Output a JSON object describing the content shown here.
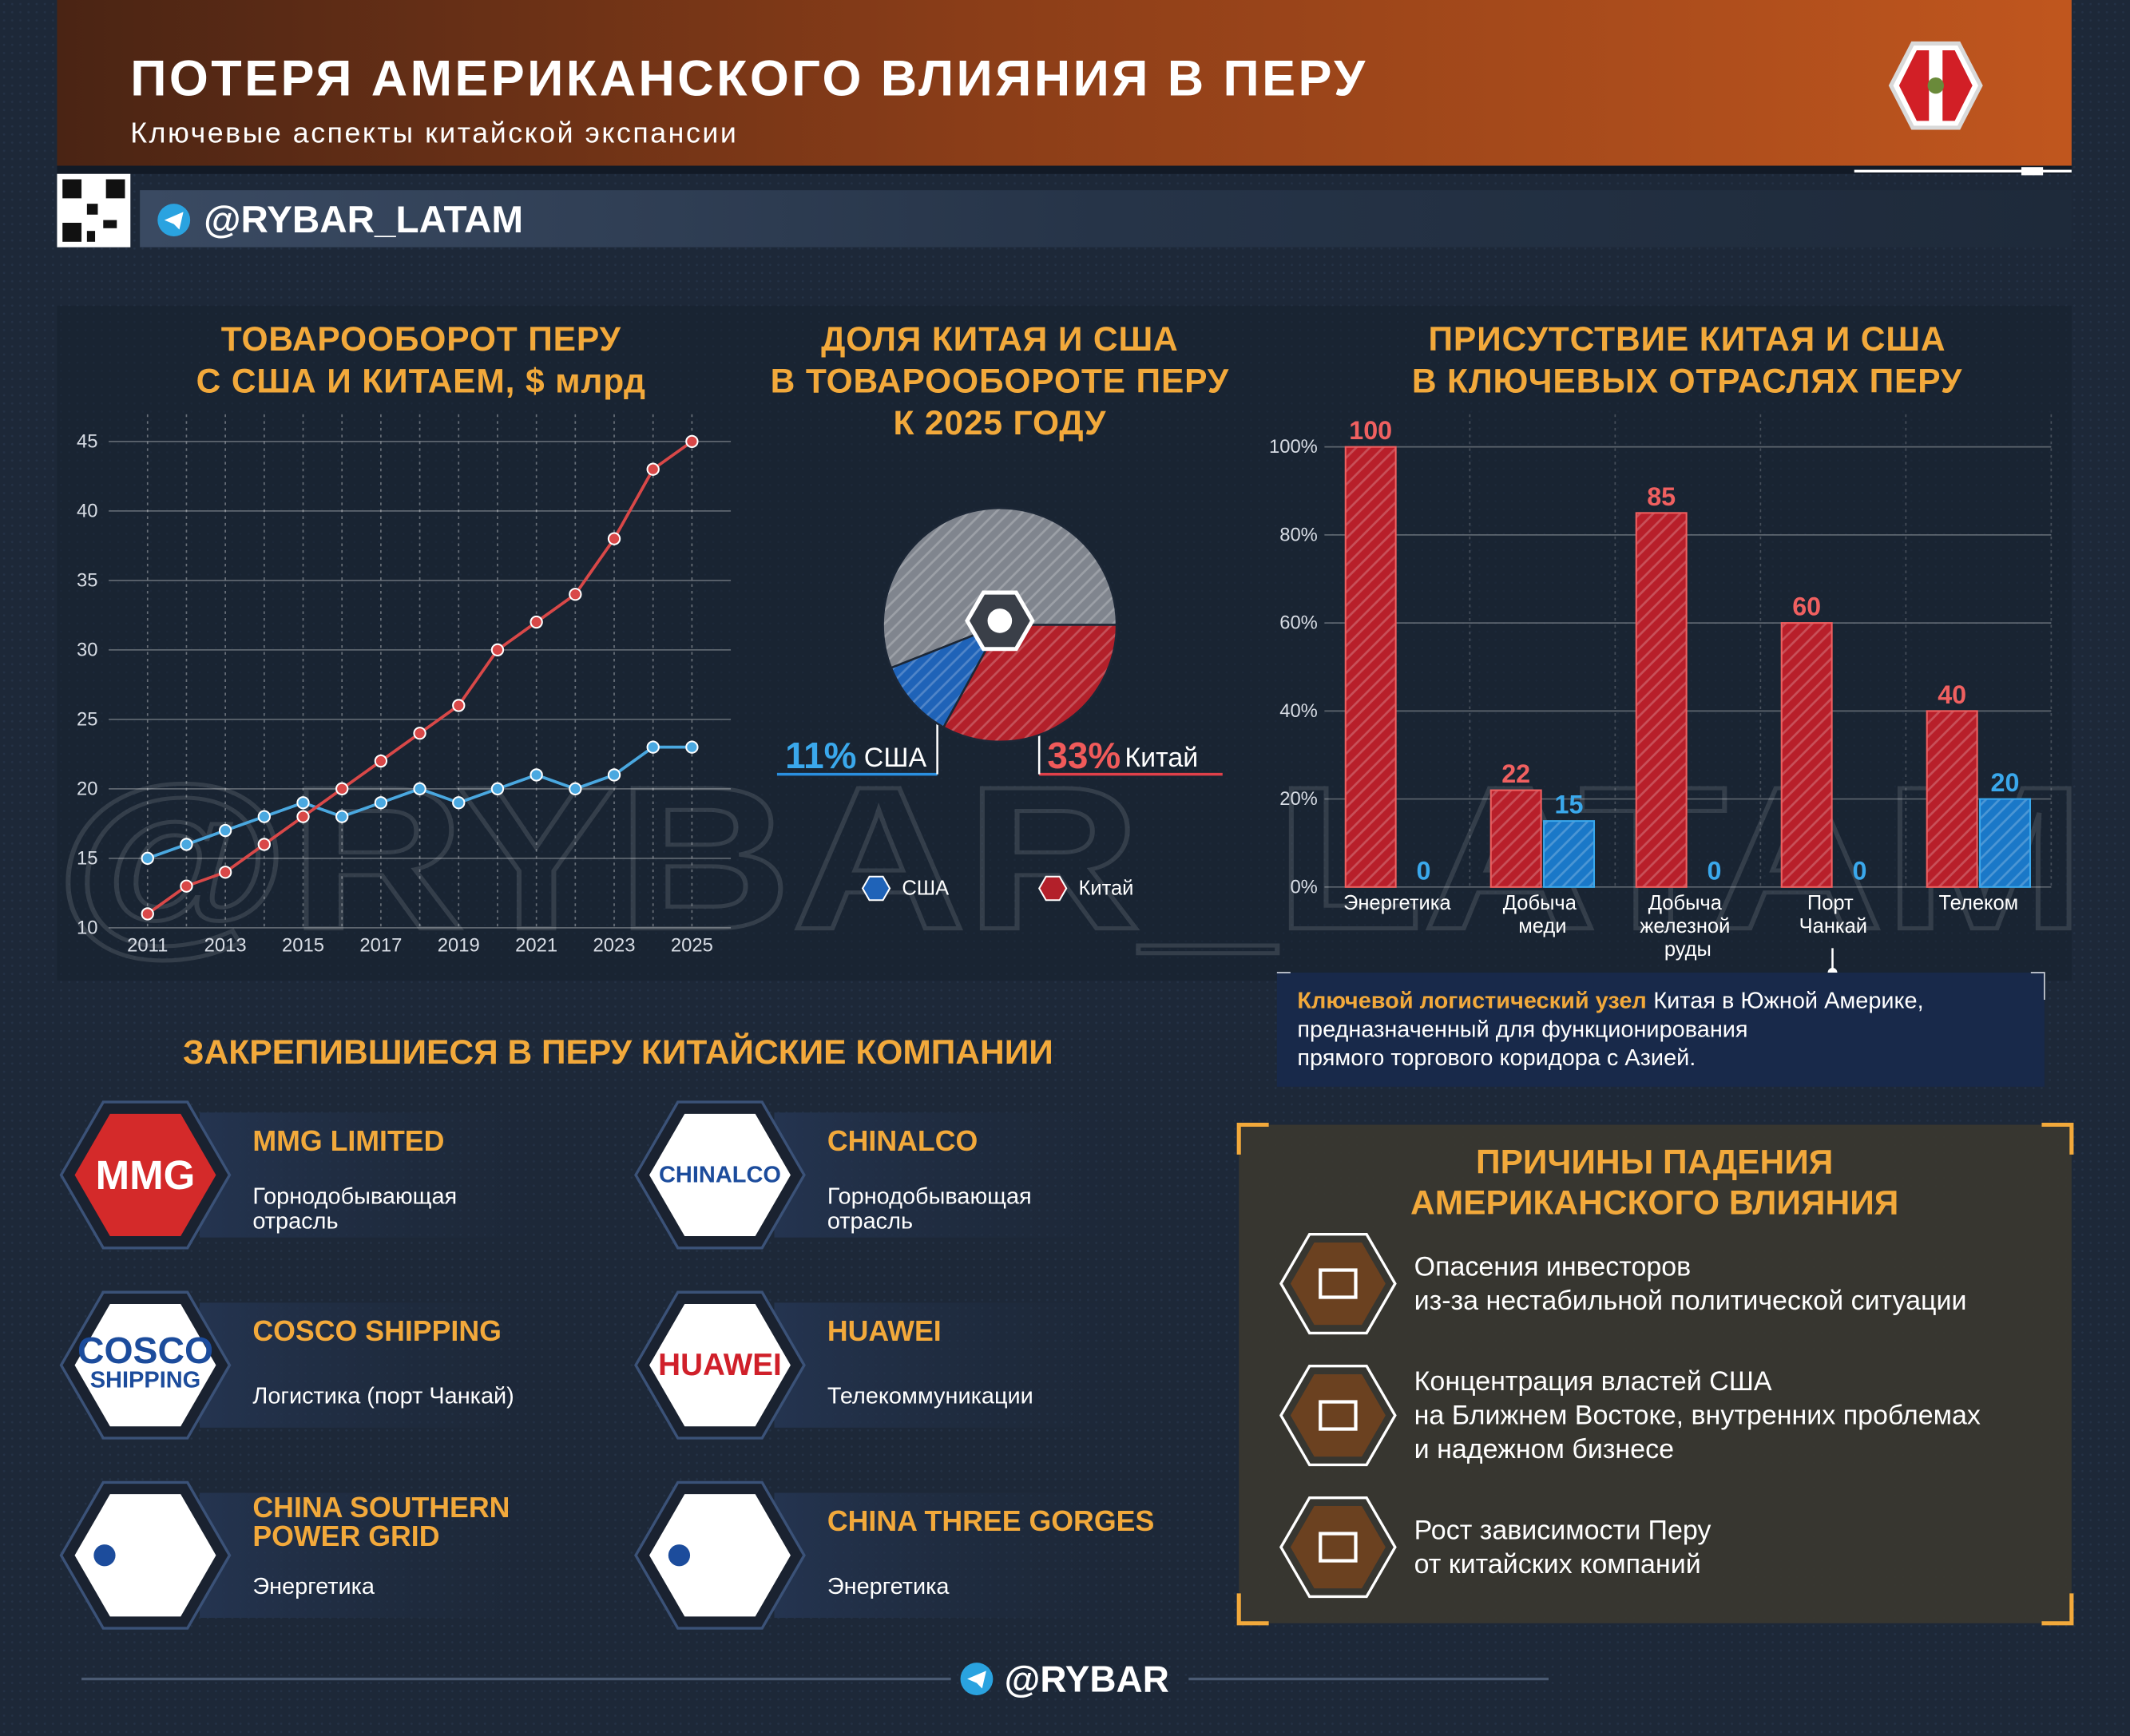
{
  "header": {
    "title": "ПОТЕРЯ АМЕРИКАНСКОГО ВЛИЯНИЯ В ПЕРУ",
    "subtitle": "Ключевые аспекты китайской экспансии",
    "handle": "@RYBAR_LATAM"
  },
  "watermark": "@RYBAR_LATAM",
  "chart_data": [
    {
      "type": "line",
      "title": [
        "ТОВАРООБОРОТ ПЕРУ",
        "С США И КИТАЕМ, $ млрд"
      ],
      "x": [
        2011,
        2012,
        2013,
        2014,
        2015,
        2016,
        2017,
        2018,
        2019,
        2020,
        2021,
        2022,
        2023,
        2024,
        2025
      ],
      "series": [
        {
          "color": "#4aa8e0",
          "values": [
            15,
            16,
            17,
            18,
            19,
            18,
            19,
            20,
            19,
            20,
            21,
            20,
            21,
            23,
            23
          ]
        },
        {
          "color": "#d94848",
          "values": [
            11,
            13,
            14,
            16,
            18,
            20,
            22,
            24,
            26,
            30,
            32,
            34,
            38,
            43,
            45
          ]
        }
      ],
      "xlim": [
        2010,
        2026
      ],
      "xticks": [
        2011,
        2013,
        2015,
        2017,
        2019,
        2021,
        2023,
        2025
      ],
      "ylim": [
        10,
        45
      ],
      "yticks": [
        10,
        15,
        20,
        25,
        30,
        35,
        40,
        45
      ],
      "grid": true
    },
    {
      "type": "pie",
      "title": [
        "ДОЛЯ КИТАЯ И США",
        "В ТОВАРООБОРОТЕ ПЕРУ",
        "К 2025 ГОДУ"
      ],
      "categories": [
        null,
        "США",
        "Китай"
      ],
      "values": [
        56,
        11,
        33
      ],
      "value_labels": [
        null,
        "11%",
        "33%"
      ],
      "colors": [
        "#80858e",
        "#1f63b8",
        "#b3202a"
      ],
      "label_colors": [
        null,
        "#3aa8ec",
        "#f05a5a"
      ]
    },
    {
      "type": "bar",
      "title": [
        "ПРИСУТСТВИЕ КИТАЯ И США",
        "В КЛЮЧЕВЫХ ОТРАСЛЯХ ПЕРУ"
      ],
      "categories": [
        "Энергетика",
        "Добыча меди",
        "Добыча железной руды",
        "Порт Чанкай",
        "Телеком"
      ],
      "series": [
        {
          "color": "#b81f2a",
          "label_color": "#f06060",
          "values": [
            100,
            22,
            85,
            60,
            40
          ]
        },
        {
          "color": "#1a78c8",
          "label_color": "#3aa8ec",
          "values": [
            0,
            15,
            0,
            0,
            20
          ]
        }
      ],
      "ylim": [
        0,
        100
      ],
      "yticks": [
        {
          "value": 0,
          "label": "0%"
        },
        {
          "value": 20,
          "label": "20%"
        },
        {
          "value": 40,
          "label": "40%"
        },
        {
          "value": 60,
          "label": "60%"
        },
        {
          "value": 80,
          "label": "80%"
        },
        {
          "value": 100,
          "label": "100%"
        }
      ],
      "grid": true
    }
  ],
  "note": {
    "highlight": "Ключевой логистический узел",
    "lines": [
      "Китая в Южной Америке,",
      "предназначенный для функционирования",
      "прямого торгового коридора с Азией."
    ]
  },
  "companies": {
    "title": "ЗАКРЕПИВШИЕСЯ В ПЕРУ КИТАЙСКИЕ КОМПАНИИ",
    "items": [
      {
        "name": [
          "MMG LIMITED"
        ],
        "sector": [
          "Горнодобывающая",
          "отрасль"
        ],
        "logo": [
          "MMG"
        ],
        "logo_bg": "#d42a2a",
        "logo_color": "#ffffff"
      },
      {
        "name": [
          "CHINALCO"
        ],
        "sector": [
          "Горнодобывающая",
          "отрасль"
        ],
        "logo": [
          "CHINALCO"
        ],
        "logo_bg": "#ffffff",
        "logo_color": "#1c4c9c"
      },
      {
        "name": [
          "COSCO SHIPPING"
        ],
        "sector": [
          "Логистика (порт Чанкай)"
        ],
        "logo": [
          "COSCO",
          "SHIPPING"
        ],
        "logo_bg": "#ffffff",
        "logo_color": "#1c4c9c"
      },
      {
        "name": [
          "HUAWEI"
        ],
        "sector": [
          "Телекоммуникации"
        ],
        "logo": [
          "HUAWEI"
        ],
        "logo_bg": "#ffffff",
        "logo_color": "#d0202a"
      },
      {
        "name": [
          "CHINA SOUTHERN",
          "POWER GRID"
        ],
        "sector": [
          "Энергетика"
        ],
        "logo": [],
        "logo_bg": "#ffffff",
        "logo_color": "#1c4c9c"
      },
      {
        "name": [
          "CHINA THREE GORGES"
        ],
        "sector": [
          "Энергетика"
        ],
        "logo": [],
        "logo_bg": "#ffffff",
        "logo_color": "#1c4c9c"
      }
    ]
  },
  "reasons": {
    "title": [
      "ПРИЧИНЫ ПАДЕНИЯ",
      "АМЕРИКАНСКОГО ВЛИЯНИЯ"
    ],
    "items": [
      [
        "Опасения инвесторов",
        "из-за нестабильной политической ситуации"
      ],
      [
        "Концентрация властей США",
        "на Ближнем Востоке, внутренних проблемах",
        "и надежном бизнесе"
      ],
      [
        "Рост зависимости Перу",
        "от китайских компаний"
      ]
    ]
  },
  "footer": "@RYBAR"
}
